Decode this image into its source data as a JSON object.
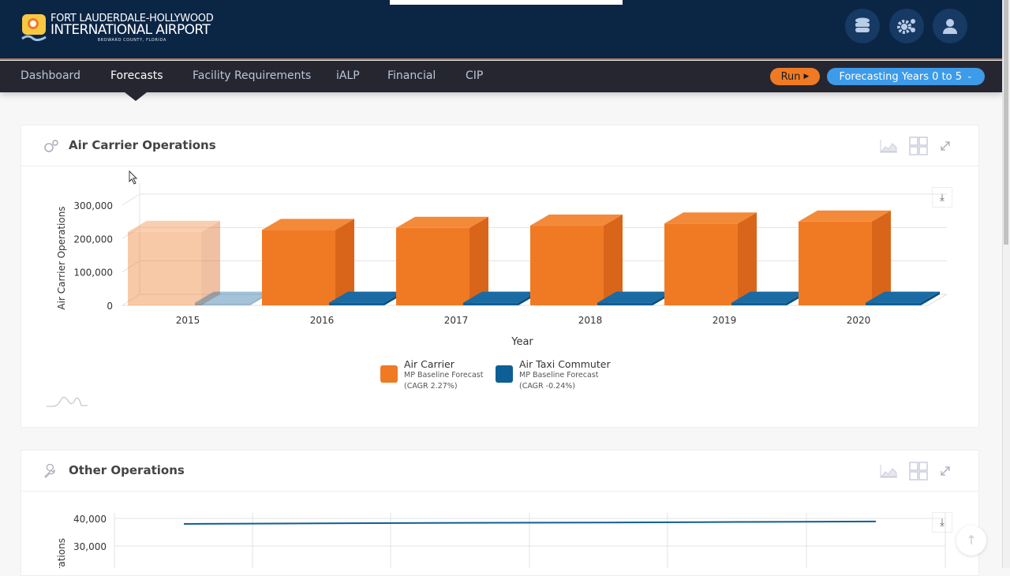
{
  "header": {
    "logo_line1": "FORT LAUDERDALE-HOLLYWOOD",
    "logo_line2": "INTERNATIONAL AIRPORT",
    "logo_line3": "BROWARD COUNTY, FLORIDA",
    "icons": [
      "database-icon",
      "gears-icon",
      "user-icon"
    ]
  },
  "nav": {
    "items": [
      {
        "label": "Dashboard"
      },
      {
        "label": "Forecasts",
        "active": true
      },
      {
        "label": "Facility Requirements"
      },
      {
        "label": "iALP"
      },
      {
        "label": "Financial"
      },
      {
        "label": "CIP"
      }
    ],
    "run_label": "Run",
    "forecast_select": "Forecasting Years 0 to 5"
  },
  "colors": {
    "air_carrier": "#f07a24",
    "air_taxi": "#0e5f96",
    "nav_bg": "#262631",
    "header_bg": "#0b2545",
    "accent_blue": "#3d9be9"
  },
  "panels": [
    {
      "title": "Air Carrier Operations",
      "icon": "gears-icon"
    },
    {
      "title": "Other Operations",
      "icon": "wrench-icon"
    }
  ],
  "chart_data": [
    {
      "type": "bar",
      "three_d": true,
      "xlabel": "Year",
      "ylabel": "Air Carrier Operations",
      "categories": [
        "2015",
        "2016",
        "2017",
        "2018",
        "2019",
        "2020"
      ],
      "ylim": [
        0,
        300000
      ],
      "yticks": [
        "0",
        "100,000",
        "200,000",
        "300,000"
      ],
      "grid": true,
      "faded_categories": [
        "2015"
      ],
      "series": [
        {
          "name": "Air Carrier",
          "subtitle": "MP Baseline Forecast",
          "note": "(CAGR 2.27%)",
          "values": [
            220000,
            226000,
            232000,
            239000,
            245000,
            251000
          ]
        },
        {
          "name": "Air Taxi Commuter",
          "subtitle": "MP Baseline Forecast",
          "note": "(CAGR -0.24%)",
          "values": [
            8000,
            8000,
            8000,
            8000,
            8000,
            8000
          ]
        }
      ],
      "legend": "bottom"
    },
    {
      "type": "line",
      "ylabel": "Operations",
      "yticks": [
        "30,000",
        "40,000"
      ],
      "grid": true,
      "series": [
        {
          "values": [
            38000,
            38200,
            38400,
            38500,
            38700,
            38900
          ]
        }
      ]
    }
  ]
}
